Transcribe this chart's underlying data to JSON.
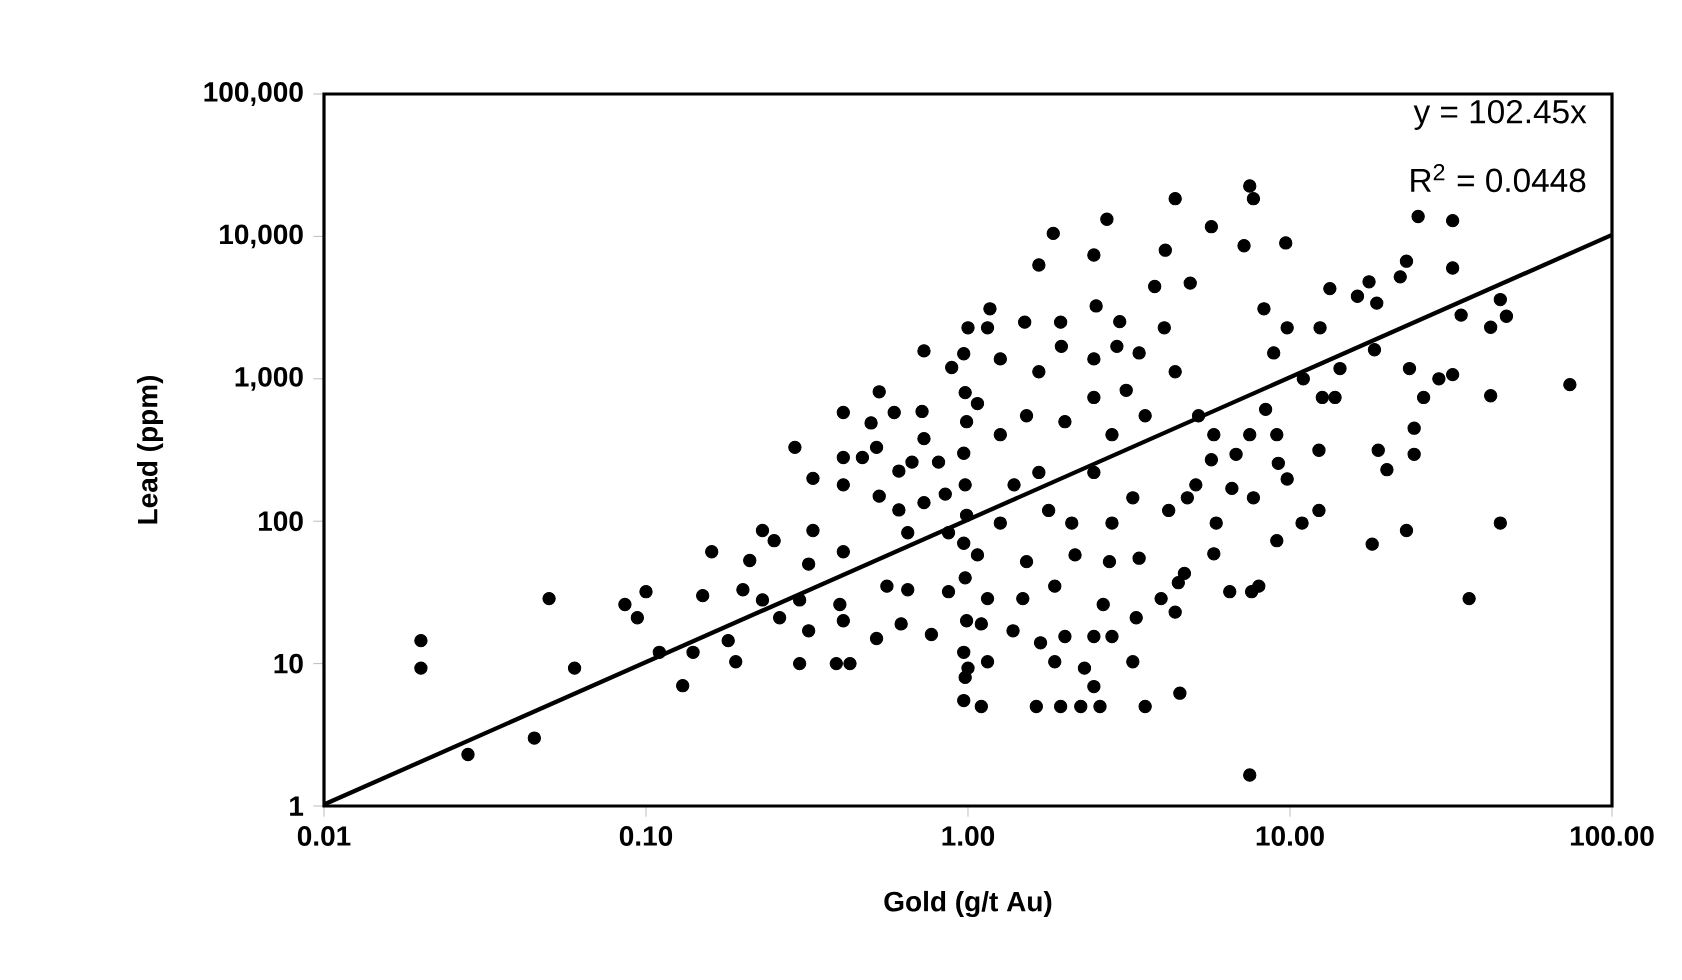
{
  "chart_data": {
    "type": "scatter",
    "xlabel": "Gold (g/t Au)",
    "ylabel": "Lead (ppm)",
    "log": "xy",
    "grid": false,
    "legend": false,
    "xlim": [
      0.01,
      100
    ],
    "ylim": [
      1,
      100000
    ],
    "xticks": [
      {
        "value": 0.01,
        "label": "0.01"
      },
      {
        "value": 0.1,
        "label": "0.10"
      },
      {
        "value": 1,
        "label": "1.00"
      },
      {
        "value": 10,
        "label": "10.00"
      },
      {
        "value": 100,
        "label": "100.00"
      }
    ],
    "yticks": [
      1,
      10,
      100,
      {
        "value": 1000,
        "label": "1,000"
      },
      {
        "value": 10000,
        "label": "10,000"
      },
      {
        "value": 100000,
        "label": "100,000"
      }
    ],
    "annotations": [
      "y = 102.45x",
      "R$^{2}$ = 0.0448"
    ],
    "series": [
      {
        "marker": "circle",
        "color": "#000000",
        "x": [
          0.02,
          0.02,
          0.028,
          0.045,
          0.05,
          0.06,
          0.086,
          0.094,
          0.1,
          0.11,
          0.13,
          0.14,
          0.15,
          0.16,
          0.18,
          0.19,
          0.2,
          0.21,
          0.23,
          0.23,
          0.25,
          0.26,
          0.29,
          0.3,
          0.3,
          0.32,
          0.32,
          0.33,
          0.33,
          0.39,
          0.4,
          0.41,
          0.41,
          0.41,
          0.41,
          0.41,
          0.43,
          0.47,
          0.5,
          0.52,
          0.52,
          0.53,
          0.53,
          0.56,
          0.59,
          0.61,
          0.61,
          0.62,
          0.65,
          0.65,
          0.67,
          0.72,
          0.73,
          0.73,
          0.73,
          0.77,
          0.81,
          0.85,
          0.87,
          0.87,
          0.89,
          0.97,
          0.98,
          0.97,
          0.99,
          0.98,
          0.97,
          0.99,
          0.98,
          0.97,
          0.99,
          0.98,
          0.97,
          1.0,
          7.5,
          7.7,
          4.4,
          2.7,
          1.84,
          5.7,
          9.7,
          7.2,
          2.46,
          1.66,
          4.1,
          25,
          32,
          23,
          32,
          22,
          17.6,
          13.3,
          16.2,
          18.6,
          45,
          47,
          34,
          42,
          74,
          23.5,
          32,
          29,
          26,
          42,
          18.3,
          14.3,
          12.4,
          11,
          13.8,
          12.6,
          18.8,
          20,
          24.3,
          24.3,
          12.3,
          9.1,
          9.2,
          9.8,
          8.4,
          8.9,
          9.8,
          8.3,
          45,
          23,
          18,
          36,
          12.3,
          10.9,
          9.1,
          8.0,
          7.6,
          6.5,
          7.5,
          4.55,
          3.55,
          2.57,
          2.24,
          1.94,
          1.63,
          1.1,
          2.46,
          3.25,
          3.33,
          4.4,
          3.98,
          4.7,
          4.5,
          5.8,
          5.9,
          6.6,
          5.1,
          4.8,
          4.2,
          3.4,
          2.75,
          2.63,
          2.0,
          1.68,
          1.38,
          1.15,
          1.0,
          2.3,
          1.86,
          7.5,
          7.7,
          6.8,
          5.8,
          5.7,
          5.2,
          4.4,
          4.07,
          4.9,
          3.8,
          2.96,
          2.9,
          3.4,
          2.46,
          1.94,
          1.5,
          1.15,
          1.17,
          2.5,
          1.95,
          1.26,
          1.66,
          2.46,
          3.1,
          3.55,
          2.8,
          2.0,
          1.52,
          1.26,
          1.07,
          1.66,
          1.39,
          2.46,
          3.25,
          2.8,
          2.1,
          1.78,
          1.26,
          1.07,
          1.52,
          2.15,
          1.86,
          1.48,
          1.15,
          1.1,
          2.46,
          2.8
        ],
        "values": [
          14.5,
          9.3,
          2.3,
          3.0,
          28.6,
          9.3,
          26,
          21,
          32,
          12,
          7.0,
          12,
          30,
          61,
          14.5,
          10.3,
          33,
          53,
          86,
          28,
          73,
          21,
          330,
          10,
          28,
          50,
          17,
          200,
          86,
          10,
          26,
          580,
          280,
          180,
          61,
          20,
          10,
          280,
          490,
          15,
          330,
          810,
          150,
          35,
          580,
          225,
          120,
          19,
          83,
          33,
          260,
          590,
          1570,
          380,
          135,
          16,
          260,
          155,
          83,
          32,
          1200,
          5.5,
          8,
          12,
          20,
          40,
          70,
          110,
          180,
          300,
          500,
          800,
          1500,
          2280,
          22600,
          18400,
          18400,
          13200,
          10500,
          11700,
          9000,
          8600,
          7400,
          6300,
          8000,
          13800,
          12900,
          6700,
          6000,
          5200,
          4800,
          4300,
          3800,
          3400,
          3600,
          2750,
          2800,
          2300,
          910,
          1180,
          1070,
          1000,
          740,
          760,
          1600,
          1180,
          2280,
          1000,
          740,
          740,
          315,
          230,
          450,
          295,
          315,
          405,
          255,
          198,
          610,
          1520,
          2280,
          3100,
          97,
          86,
          69,
          28.6,
          119,
          97,
          73,
          35,
          32,
          32,
          1.65,
          6.2,
          5.0,
          5.0,
          5.0,
          5.0,
          5.0,
          5.0,
          6.9,
          10.3,
          21,
          23,
          28.6,
          43,
          37,
          59,
          97,
          170,
          180,
          146,
          119,
          55,
          52,
          26,
          15.5,
          14,
          17,
          10.3,
          9.3,
          9.3,
          10.3,
          405,
          146,
          295,
          405,
          270,
          550,
          1120,
          2280,
          4700,
          4450,
          2520,
          1690,
          1520,
          1380,
          2500,
          2500,
          2280,
          3100,
          3250,
          1690,
          1380,
          1120,
          740,
          830,
          550,
          405,
          500,
          550,
          405,
          670,
          220,
          180,
          220,
          146,
          97,
          97,
          119,
          97,
          58,
          52,
          58,
          35,
          28.6,
          28.6,
          19,
          15.5,
          15.5
        ]
      },
      {
        "type": "line",
        "marker": "none",
        "color": "#000000",
        "x": [
          0.01,
          100
        ],
        "values": [
          1.0245,
          10245
        ]
      }
    ]
  }
}
